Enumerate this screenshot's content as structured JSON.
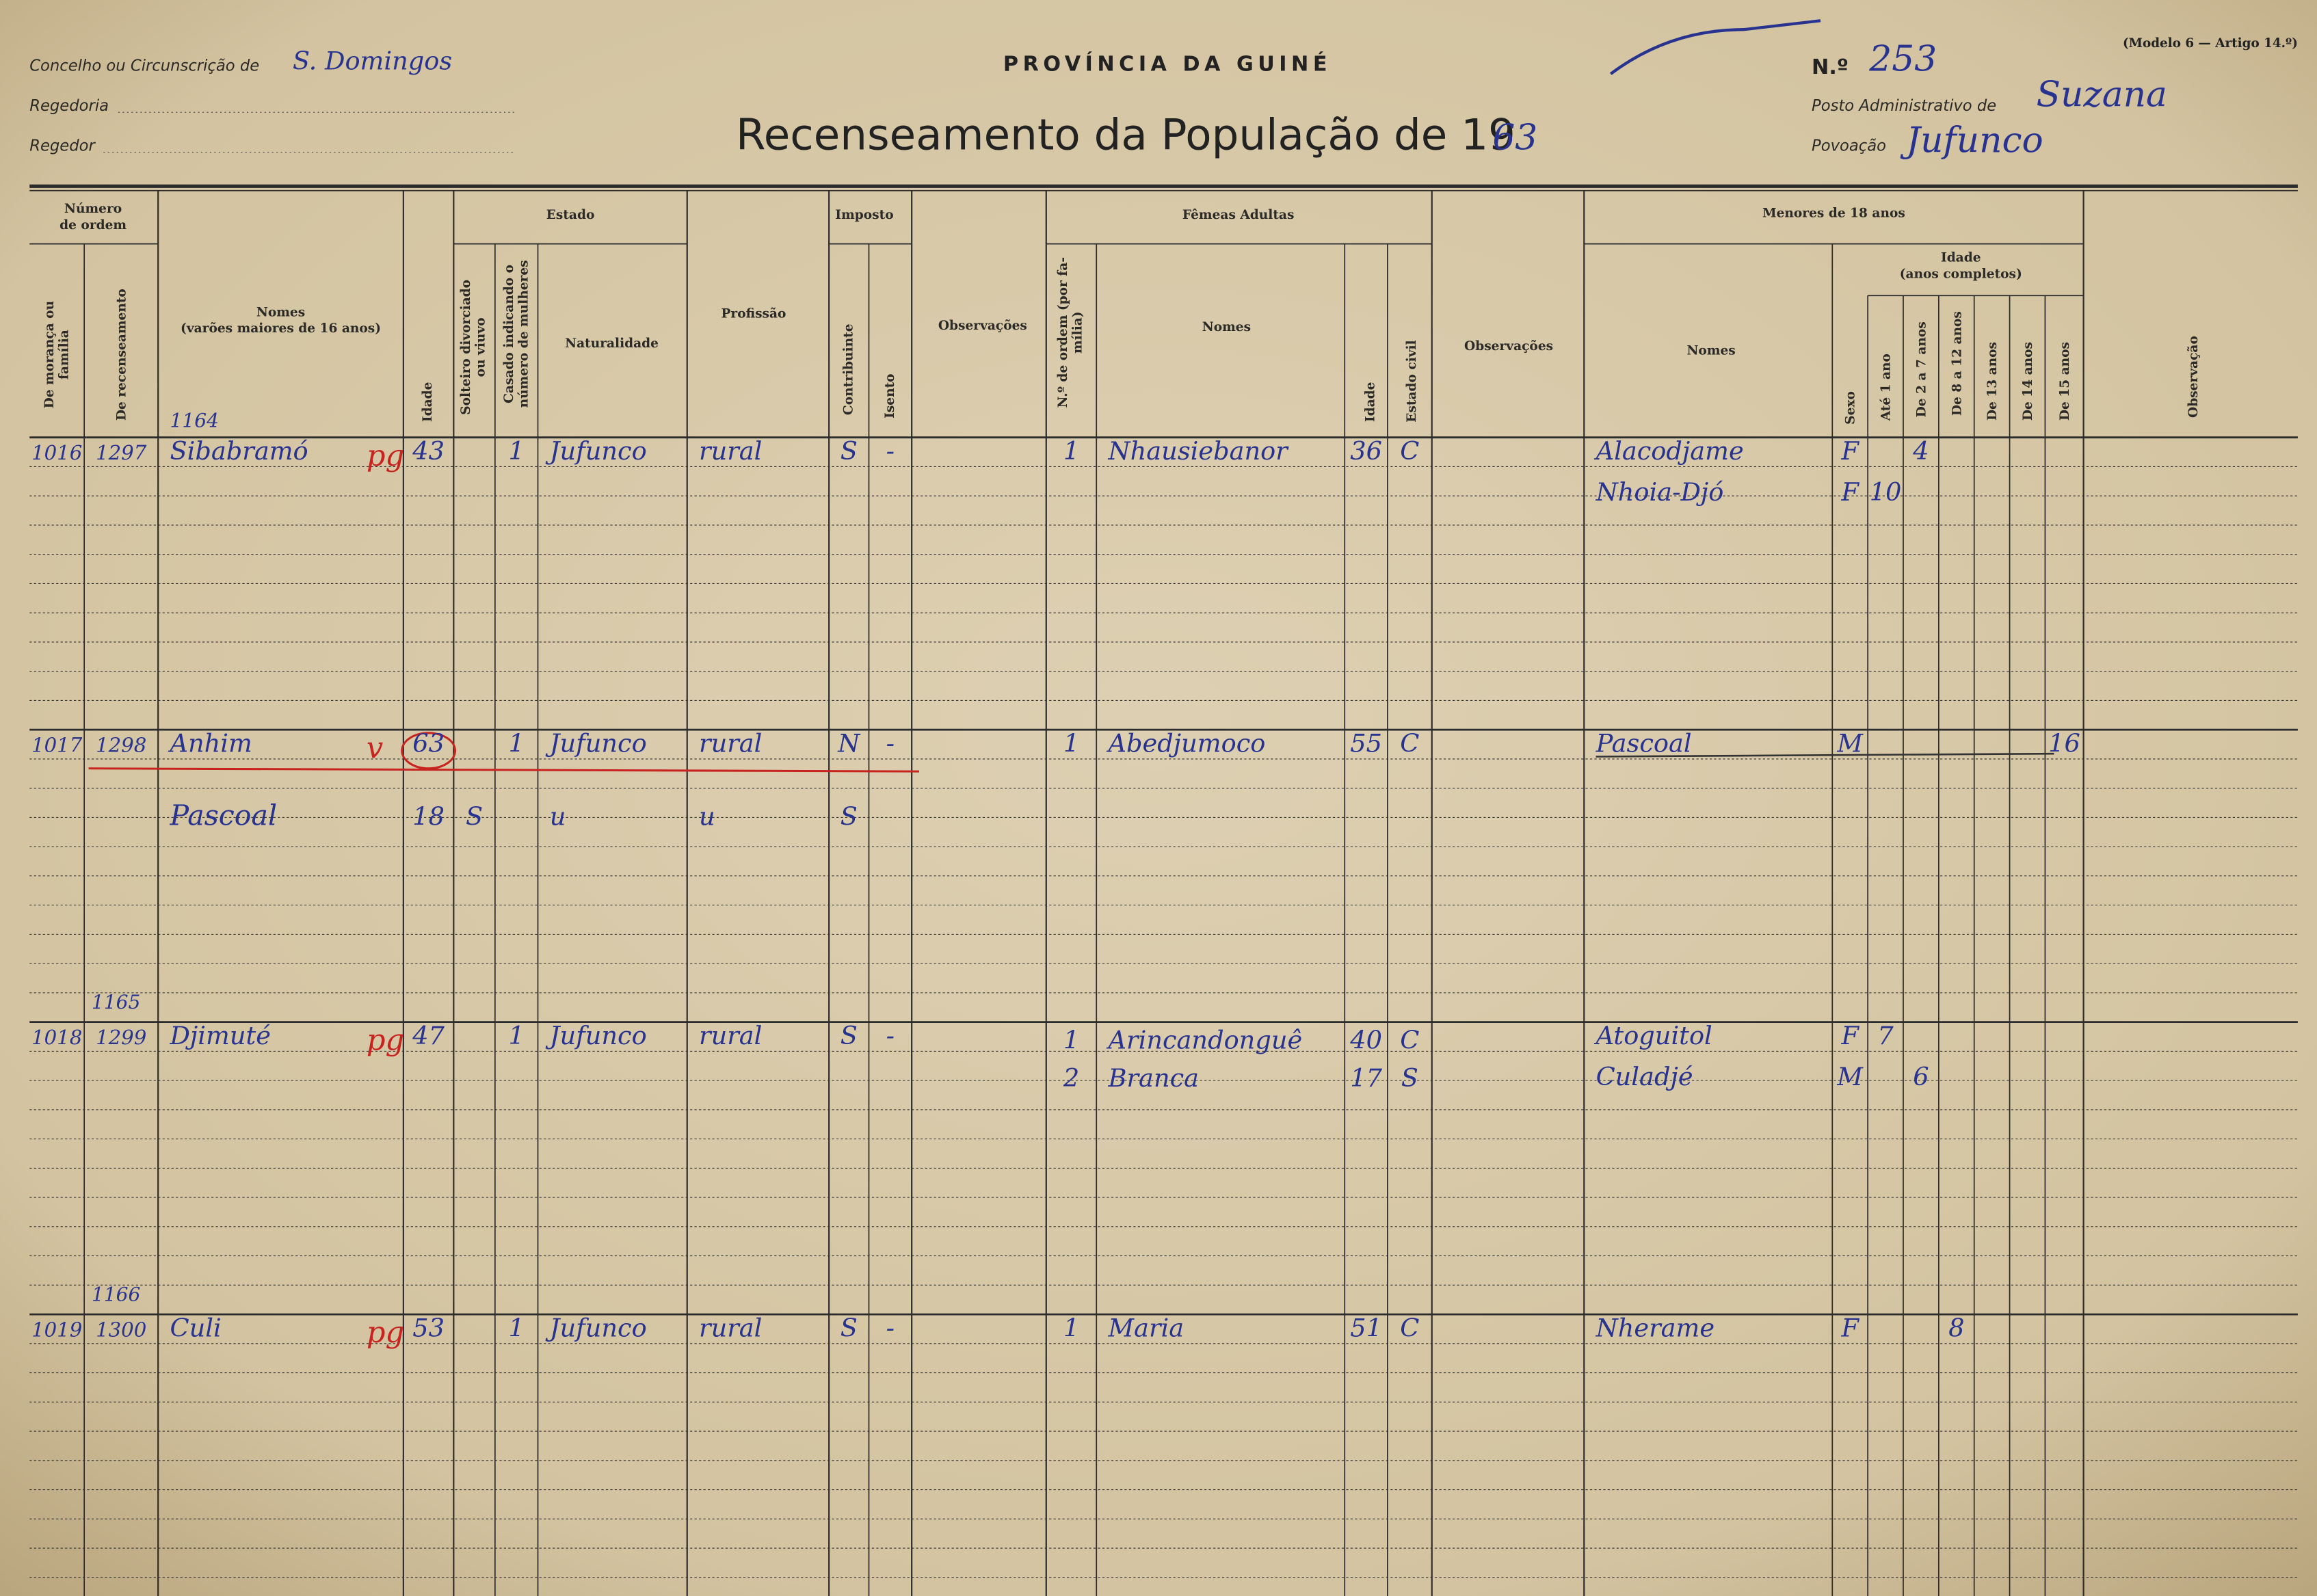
{
  "header": {
    "concelho_label": "Concelho ou Circunscrição de",
    "concelho": "S. Domingos",
    "regedoria_label": "Regedoria",
    "regedor_label": "Regedor",
    "province": "PROVÍNCIA DA GUINÉ",
    "title": "Recenseamento da População de 19",
    "year": "63",
    "number_label": "N.º",
    "number": "253",
    "model": "(Modelo 6 — Artigo 14.º)",
    "posto_label": "Posto Administrativo de",
    "posto": "Suzana",
    "povoacao_label": "Povoação",
    "povoacao": "Jufunco"
  },
  "columns": {
    "numero_ordem": [
      "Número",
      "de ordem"
    ],
    "moranca": [
      "De morança ou",
      "família"
    ],
    "recenseamento": "De recenseamento",
    "nomes": [
      "Nomes",
      "(varões maiores de 16 anos)"
    ],
    "idade": "Idade",
    "estado": "Estado",
    "solteiro": [
      "Solteiro divorciado",
      "ou viuvo"
    ],
    "casado": [
      "Casado indicando o",
      "número de mulheres"
    ],
    "naturalidade": "Naturalidade",
    "profissao": "Profissão",
    "imposto": "Imposto",
    "contribuinte": "Contribuinte",
    "isento": "Isento",
    "observacoes": "Observações",
    "femeas": "Fêmeas Adultas",
    "ordem_familia": [
      "N.º de ordem (por fa-",
      "mília)"
    ],
    "nomes_femeas": "Nomes",
    "idade_femeas": "Idade",
    "estado_civil": "Estado civil",
    "observacoes_femeas": "Observações",
    "menores": "Menores de 18 anos",
    "nomes_menores": "Nomes",
    "idade_menores": [
      "Idade",
      "(anos completos)"
    ],
    "sexo": "Sexo",
    "ate_1_ano": "Até 1 ano",
    "de_2_a_7": "De 2 a 7 anos",
    "de_8_a_12": "De 8 a 12 anos",
    "de_13": "De 13 anos",
    "de_14": "De 14 anos",
    "de_15": "De 15 anos",
    "observacao": "Observação"
  },
  "families": [
    {
      "note": "1164",
      "moranca": "1016",
      "recenseamento": "1297",
      "men": [
        {
          "name": "Sibabramó",
          "mark": "pg",
          "idade": "43",
          "casado": "1",
          "naturalidade": "Jufunco",
          "profissao": "rural",
          "contribuinte": "S",
          "isento": "-"
        }
      ],
      "women": [
        {
          "ordem": "1",
          "name": "Nhausiebanor",
          "idade": "36",
          "estado": "C"
        }
      ],
      "children": [
        {
          "name": "Alacodjame",
          "sexo": "F",
          "de_2_a_7": "4"
        },
        {
          "name": "Nhoia-Djó",
          "sexo": "F",
          "ate_1_ano": "10"
        }
      ]
    },
    {
      "moranca": "1017",
      "recenseamento": "1298",
      "men": [
        {
          "name": "Anhim",
          "mark": "v",
          "idade": "63",
          "casado": "1",
          "naturalidade": "Jufunco",
          "profissao": "rural",
          "contribuinte": "N",
          "isento": "-"
        },
        {
          "name": "Pascoal",
          "idade": "18",
          "solteiro": "S",
          "naturalidade": "u",
          "profissao": "u",
          "contribuinte": "S"
        }
      ],
      "women": [
        {
          "ordem": "1",
          "name": "Abedjumoco",
          "idade": "55",
          "estado": "C"
        }
      ],
      "children": [
        {
          "name": "Pascoal",
          "sexo": "M",
          "de_15": "16"
        }
      ]
    },
    {
      "note": "1165",
      "moranca": "1018",
      "recenseamento": "1299",
      "men": [
        {
          "name": "Djimuté",
          "mark": "pg",
          "idade": "47",
          "casado": "1",
          "naturalidade": "Jufunco",
          "profissao": "rural",
          "contribuinte": "S",
          "isento": "-"
        }
      ],
      "women": [
        {
          "ordem": "1",
          "name": "Arincandonguê",
          "idade": "40",
          "estado": "C"
        },
        {
          "ordem": "2",
          "name": "Branca",
          "idade": "17",
          "estado": "S"
        }
      ],
      "children": [
        {
          "name": "Atoguitol",
          "sexo": "F",
          "ate_1_ano": "7"
        },
        {
          "name": "Culadjé",
          "sexo": "M",
          "de_2_a_7": "6"
        }
      ]
    },
    {
      "note": "1166",
      "moranca": "1019",
      "recenseamento": "1300",
      "men": [
        {
          "name": "Culi",
          "mark": "pg",
          "idade": "53",
          "casado": "1",
          "naturalidade": "Jufunco",
          "profissao": "rural",
          "contribuinte": "S",
          "isento": "-"
        }
      ],
      "women": [
        {
          "ordem": "1",
          "name": "Maria",
          "idade": "51",
          "estado": "C"
        }
      ],
      "children": [
        {
          "name": "Nherame",
          "sexo": "F",
          "de_8_a_12": "8"
        }
      ]
    }
  ]
}
